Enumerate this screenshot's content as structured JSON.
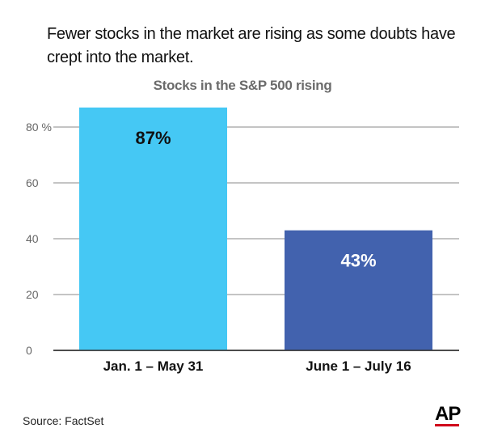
{
  "headline": "Fewer stocks in the market are rising as some doubts have crept into the market.",
  "source": "Source: FactSet",
  "logo": "AP",
  "colors": {
    "bar_first": "#45c8f4",
    "bar_second": "#4262ae",
    "grid": "#888888",
    "logo_accent": "#d0021b"
  },
  "chart_data": {
    "type": "bar",
    "title": "Stocks in the S&P 500 rising",
    "categories": [
      "Jan. 1 – May 31",
      "June 1 – July 16"
    ],
    "values": [
      87,
      43
    ],
    "data_labels": [
      "87%",
      "43%"
    ],
    "ylim": [
      0,
      80
    ],
    "yticks": [
      0,
      20,
      40,
      60,
      80
    ],
    "ytick_labels": [
      "0",
      "20",
      "40",
      "60",
      "80 %"
    ],
    "grid": true
  }
}
